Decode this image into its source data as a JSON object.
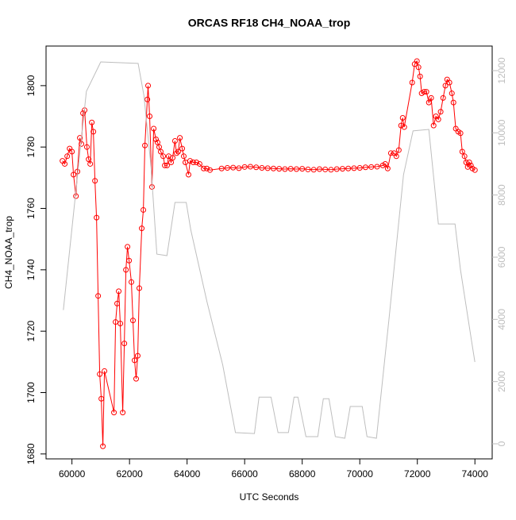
{
  "chart_data": {
    "type": "line",
    "title": "ORCAS RF18 CH4_NOAA_trop",
    "x_label": "UTC Seconds",
    "y_label": "CH4_NOAA_trop",
    "xlim": [
      59100,
      74600
    ],
    "xticks": [
      60000,
      62000,
      64000,
      66000,
      68000,
      70000,
      72000,
      74000
    ],
    "ylim": [
      1678.4,
      1812.9
    ],
    "yticks": [
      1680,
      1700,
      1720,
      1740,
      1760,
      1780,
      1800
    ],
    "y2lim": [
      -485,
      12790
    ],
    "y2ticks": [
      0,
      2000,
      4000,
      6000,
      8000,
      10000,
      12000
    ],
    "y2_color": "#bebebe",
    "series": [
      {
        "color": "#ff0000",
        "axis": "y",
        "markers": true,
        "x": [
          59670,
          59750,
          59835,
          59920,
          60000,
          60055,
          60140,
          60190,
          60275,
          60330,
          60385,
          60440,
          60520,
          60580,
          60635,
          60690,
          60745,
          60800,
          60855,
          60910,
          60965,
          61020,
          61075,
          61130,
          61460,
          61515,
          61570,
          61625,
          61680,
          61765,
          61820,
          61875,
          61930,
          61985,
          62065,
          62120,
          62175,
          62230,
          62285,
          62340,
          62425,
          62480,
          62535,
          62620,
          62645,
          62700,
          62780,
          62840,
          62920,
          62975,
          63030,
          63085,
          63170,
          63225,
          63305,
          63360,
          63445,
          63500,
          63580,
          63635,
          63690,
          63750,
          63830,
          63885,
          63940,
          64050,
          64105,
          64215,
          64325,
          64435,
          64575,
          64685,
          64795,
          65200,
          65400,
          65600,
          65800,
          66000,
          66200,
          66400,
          66600,
          66800,
          67000,
          67200,
          67400,
          67600,
          67800,
          68000,
          68200,
          68400,
          68600,
          68800,
          69000,
          69200,
          69400,
          69600,
          69800,
          70000,
          70200,
          70400,
          70600,
          70800,
          70885,
          70970,
          71080,
          71190,
          71270,
          71355,
          71435,
          71490,
          71545,
          71820,
          71905,
          71985,
          72040,
          72095,
          72150,
          72235,
          72315,
          72400,
          72480,
          72565,
          72645,
          72730,
          72810,
          72895,
          72975,
          73035,
          73115,
          73200,
          73255,
          73335,
          73420,
          73500,
          73560,
          73640,
          73695,
          73750,
          73805,
          73860,
          73915,
          74000
        ],
        "values": [
          1775.5,
          1774.5,
          1777,
          1779.5,
          1778.5,
          1771,
          1764,
          1772,
          1783,
          1781,
          1791,
          1792,
          1780,
          1776,
          1774.5,
          1788,
          1785,
          1769,
          1757,
          1731.5,
          1706,
          1698,
          1682.5,
          1707,
          1693.5,
          1723,
          1729,
          1733,
          1722.5,
          1693.5,
          1716,
          1740,
          1747.5,
          1743,
          1736,
          1723.5,
          1710.5,
          1704.5,
          1712,
          1734,
          1753.5,
          1759.5,
          1780.5,
          1795.5,
          1800,
          1790,
          1767,
          1786,
          1782.5,
          1781.5,
          1780,
          1778.5,
          1777,
          1774,
          1774,
          1777,
          1775,
          1776.5,
          1782,
          1778,
          1778.5,
          1783,
          1779.5,
          1777,
          1775,
          1771,
          1775.5,
          1775,
          1775,
          1774.5,
          1773,
          1773,
          1772.5,
          1773,
          1773.2,
          1773.3,
          1773.1,
          1773.5,
          1773.6,
          1773.4,
          1773.2,
          1773.1,
          1773,
          1772.9,
          1772.8,
          1772.9,
          1772.8,
          1772.9,
          1772.7,
          1772.6,
          1772.8,
          1772.7,
          1772.6,
          1772.8,
          1772.9,
          1773,
          1773.1,
          1773.2,
          1773.4,
          1773.5,
          1773.6,
          1774,
          1774.5,
          1773,
          1778,
          1778,
          1777,
          1779,
          1787,
          1789.5,
          1786.5,
          1801,
          1807,
          1808,
          1806,
          1803,
          1797.5,
          1798,
          1798,
          1794.5,
          1796,
          1787,
          1790,
          1789,
          1791.5,
          1796,
          1800,
          1802,
          1801,
          1797.5,
          1794.5,
          1786,
          1785,
          1784.5,
          1778.5,
          1777,
          1775,
          1773.5,
          1775,
          1774,
          1773,
          1772.5
        ]
      },
      {
        "color": "#bebebe",
        "axis": "y2",
        "markers": false,
        "x": [
          59700,
          60500,
          61000,
          62300,
          62500,
          62750,
          62950,
          63300,
          63580,
          63970,
          64130,
          64690,
          65240,
          65680,
          66340,
          66500,
          66915,
          67160,
          67520,
          67715,
          67850,
          68130,
          68540,
          68735,
          68930,
          69150,
          69480,
          69670,
          70085,
          70250,
          70580,
          71020,
          71520,
          71850,
          72400,
          72730,
          73310,
          73500,
          73885,
          74000
        ],
        "values": [
          4300,
          11330,
          12280,
          12230,
          11200,
          8900,
          6100,
          6050,
          7760,
          7760,
          6870,
          4570,
          2530,
          360,
          330,
          1500,
          1500,
          360,
          360,
          1500,
          1500,
          230,
          230,
          1450,
          1450,
          230,
          180,
          1200,
          1200,
          230,
          180,
          4060,
          8650,
          10060,
          10110,
          7070,
          7070,
          5590,
          3290,
          2630
        ]
      }
    ]
  }
}
